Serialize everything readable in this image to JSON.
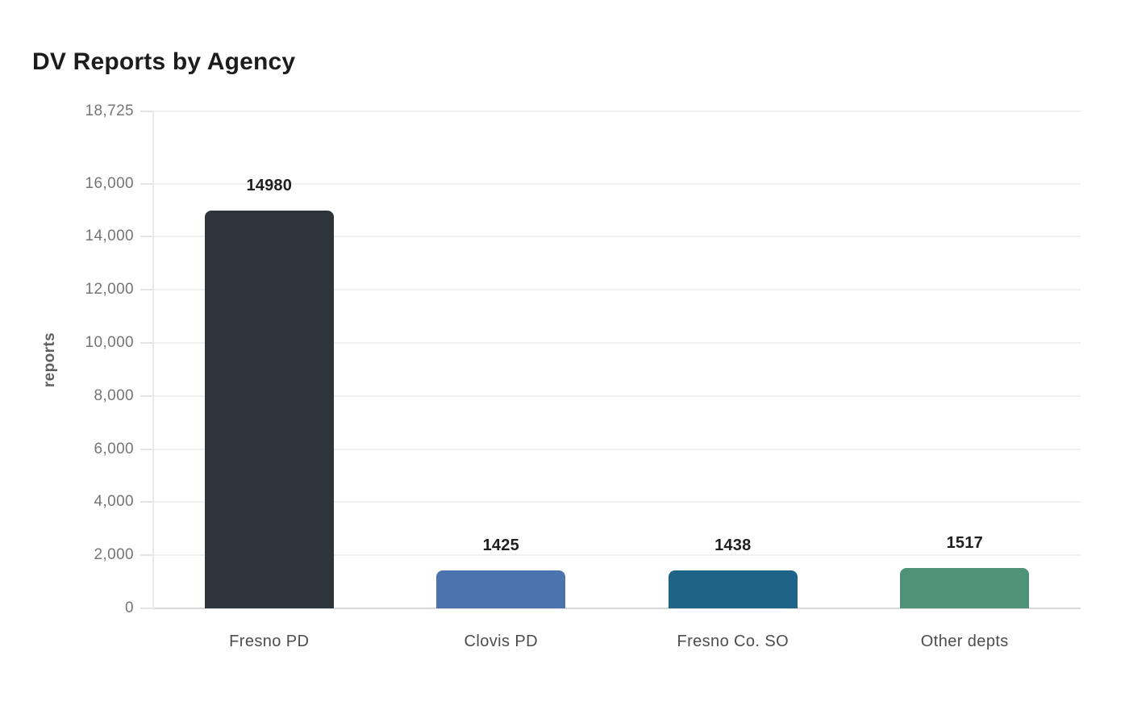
{
  "title": "DV Reports by Agency",
  "chart_data": {
    "type": "bar",
    "title": "DV Reports by Agency",
    "categories": [
      "Fresno PD",
      "Clovis PD",
      "Fresno Co. SO",
      "Other depts"
    ],
    "values": [
      14980,
      1425,
      1438,
      1517
    ],
    "value_labels": [
      "14980",
      "1425",
      "1438",
      "1517"
    ],
    "bar_colors": [
      "#2d353a",
      "#4b73ae",
      "#1e6388",
      "#4e9277"
    ],
    "xlabel": "",
    "ylabel": "reports",
    "ylim": [
      0,
      18725
    ],
    "yticks": [
      {
        "value": 0,
        "label": "0"
      },
      {
        "value": 2000,
        "label": "2,000"
      },
      {
        "value": 4000,
        "label": "4,000"
      },
      {
        "value": 6000,
        "label": "6,000"
      },
      {
        "value": 8000,
        "label": "8,000"
      },
      {
        "value": 10000,
        "label": "10,000"
      },
      {
        "value": 12000,
        "label": "12,000"
      },
      {
        "value": 14000,
        "label": "14,000"
      },
      {
        "value": 16000,
        "label": "16,000"
      },
      {
        "value": 18725,
        "label": "18,725"
      }
    ],
    "grid": true,
    "legend": false
  },
  "style": {
    "background": "#ffffff",
    "grid_color": "#f0f0f0",
    "baseline_color": "#d9d9d9",
    "axis_line_color": "#e9e9e9",
    "tick_mark_color": "#e4e4e4",
    "tick_text_color": "#757575",
    "category_text_color": "#4d4d4d",
    "value_text_color": "#1f1f1f",
    "title_color": "#1c1c1c",
    "ylabel_color": "#5f5f5f"
  }
}
